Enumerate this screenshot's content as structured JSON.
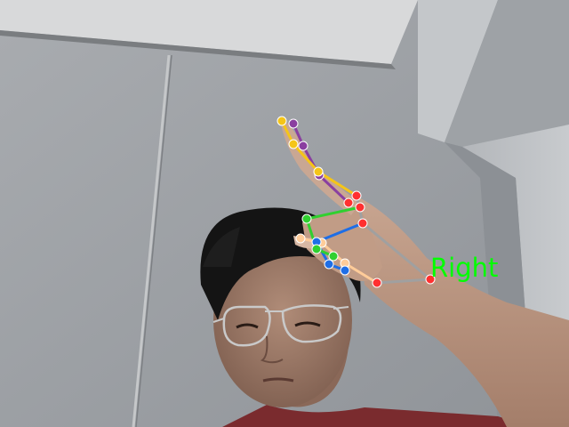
{
  "overlay": {
    "handedness_label": "Right",
    "label_color": "#00ff00",
    "landmark_colors": {
      "wrist": "#ff3030",
      "thumb": "#ffcc99",
      "index": "#1e6ee6",
      "middle": "#30d030",
      "ring": "#8a3fa0",
      "pinky": "#f5c518",
      "palm": "#ff3030",
      "connector": "#a0a0a0"
    }
  }
}
